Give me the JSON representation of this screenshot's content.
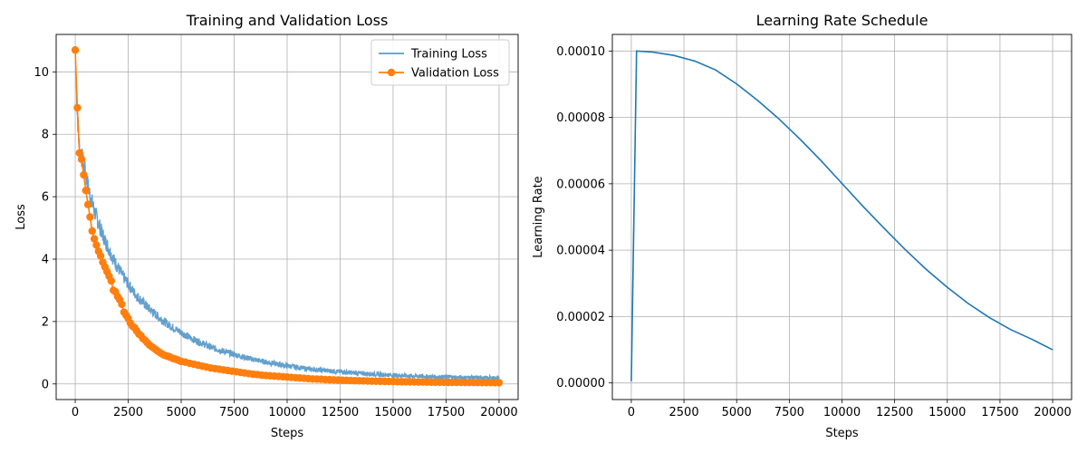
{
  "chart_data": [
    {
      "type": "line",
      "title": "Training and Validation Loss",
      "xlabel": "Steps",
      "ylabel": "Loss",
      "xlim": [
        -900,
        20900
      ],
      "ylim": [
        -0.5,
        11.2
      ],
      "xticks": [
        0,
        2500,
        5000,
        7500,
        10000,
        12500,
        15000,
        17500,
        20000
      ],
      "yticks": [
        0,
        2,
        4,
        6,
        8,
        10
      ],
      "grid": true,
      "legend_position": "top-right",
      "series": [
        {
          "name": "Training Loss",
          "color": "#5b9bcb",
          "style": "line",
          "x": [
            0,
            100,
            200,
            300,
            400,
            500,
            600,
            700,
            800,
            900,
            1000,
            1200,
            1400,
            1600,
            1800,
            2000,
            2250,
            2500,
            2750,
            3000,
            3500,
            4000,
            4500,
            5000,
            5500,
            6000,
            6500,
            7000,
            7500,
            8000,
            9000,
            10000,
            11000,
            12000,
            13000,
            14000,
            15000,
            16000,
            17000,
            18000,
            19000,
            20000
          ],
          "values": [
            10.6,
            8.7,
            7.5,
            7.3,
            7.0,
            6.7,
            6.35,
            6.05,
            5.8,
            5.55,
            5.35,
            4.95,
            4.6,
            4.3,
            4.0,
            3.75,
            3.45,
            3.2,
            2.95,
            2.75,
            2.4,
            2.1,
            1.85,
            1.65,
            1.45,
            1.3,
            1.15,
            1.05,
            0.95,
            0.85,
            0.7,
            0.58,
            0.48,
            0.42,
            0.36,
            0.32,
            0.28,
            0.25,
            0.23,
            0.21,
            0.2,
            0.19
          ]
        },
        {
          "name": "Validation Loss",
          "color": "#ff7f0e",
          "style": "line-marker",
          "x": [
            0,
            100,
            200,
            300,
            400,
            500,
            600,
            700,
            800,
            900,
            1000,
            1100,
            1200,
            1300,
            1400,
            1500,
            1600,
            1700,
            1800,
            1900,
            2000,
            2100,
            2200,
            2300,
            2400,
            2500,
            2600,
            2700,
            2800,
            2900,
            3000,
            3100,
            3200,
            3300,
            3400,
            3500,
            3600,
            3700,
            3800,
            3900,
            4000,
            4100,
            4200,
            4300,
            4400,
            4500,
            4600,
            4700,
            4800,
            4900,
            5000,
            5200,
            5400,
            5600,
            5800,
            6000,
            6200,
            6400,
            6600,
            6800,
            7000,
            7200,
            7400,
            7600,
            7800,
            8000,
            8200,
            8400,
            8600,
            8800,
            9000,
            9200,
            9400,
            9600,
            9800,
            10000,
            10200,
            10400,
            10600,
            10800,
            11000,
            11200,
            11400,
            11600,
            11800,
            12000,
            12200,
            12400,
            12600,
            12800,
            13000,
            13200,
            13400,
            13600,
            13800,
            14000,
            14200,
            14400,
            14600,
            14800,
            15000,
            15200,
            15400,
            15600,
            15800,
            16000,
            16200,
            16400,
            16600,
            16800,
            17000,
            17200,
            17400,
            17600,
            17800,
            18000,
            18200,
            18400,
            18600,
            18800,
            19000,
            19200,
            19400,
            19600,
            19800,
            20000
          ],
          "values": [
            10.7,
            8.85,
            7.4,
            7.2,
            6.7,
            6.2,
            5.75,
            5.35,
            4.9,
            4.65,
            4.45,
            4.25,
            4.1,
            3.9,
            3.75,
            3.6,
            3.45,
            3.3,
            3.0,
            2.95,
            2.8,
            2.7,
            2.55,
            2.3,
            2.2,
            2.1,
            1.95,
            1.85,
            1.8,
            1.7,
            1.6,
            1.55,
            1.45,
            1.4,
            1.32,
            1.25,
            1.2,
            1.15,
            1.1,
            1.05,
            1.0,
            0.96,
            0.92,
            0.9,
            0.88,
            0.85,
            0.82,
            0.8,
            0.78,
            0.75,
            0.72,
            0.7,
            0.66,
            0.63,
            0.6,
            0.57,
            0.54,
            0.51,
            0.49,
            0.47,
            0.45,
            0.43,
            0.41,
            0.39,
            0.37,
            0.35,
            0.33,
            0.31,
            0.3,
            0.28,
            0.27,
            0.26,
            0.25,
            0.24,
            0.23,
            0.22,
            0.21,
            0.2,
            0.19,
            0.18,
            0.17,
            0.16,
            0.155,
            0.15,
            0.14,
            0.135,
            0.13,
            0.125,
            0.12,
            0.115,
            0.11,
            0.105,
            0.1,
            0.097,
            0.094,
            0.09,
            0.087,
            0.084,
            0.081,
            0.078,
            0.075,
            0.072,
            0.07,
            0.068,
            0.066,
            0.064,
            0.062,
            0.06,
            0.058,
            0.056,
            0.055,
            0.054,
            0.053,
            0.052,
            0.051,
            0.05,
            0.049,
            0.048,
            0.047,
            0.046,
            0.045,
            0.044,
            0.043,
            0.042,
            0.041,
            0.04
          ]
        }
      ]
    },
    {
      "type": "line",
      "title": "Learning Rate Schedule",
      "xlabel": "Steps",
      "ylabel": "Learning Rate",
      "xlim": [
        -900,
        20900
      ],
      "ylim": [
        -5e-06,
        0.000105
      ],
      "xticks": [
        0,
        2500,
        5000,
        7500,
        10000,
        12500,
        15000,
        17500,
        20000
      ],
      "yticks": [
        0,
        2e-05,
        4e-05,
        6e-05,
        8e-05,
        0.0001
      ],
      "ytick_labels": [
        "0.00000",
        "0.00002",
        "0.00004",
        "0.00006",
        "0.00008",
        "0.00010"
      ],
      "grid": true,
      "series": [
        {
          "color": "#1f77b4",
          "style": "line",
          "x": [
            0,
            250,
            1000,
            2000,
            3000,
            4000,
            5000,
            6000,
            7000,
            8000,
            9000,
            10000,
            11000,
            12000,
            13000,
            14000,
            15000,
            16000,
            17000,
            18000,
            19000,
            20000
          ],
          "values": [
            5e-07,
            0.0001,
            9.97e-05,
            9.87e-05,
            9.7e-05,
            9.43e-05,
            9.01e-05,
            8.51e-05,
            7.96e-05,
            7.35e-05,
            6.7e-05,
            6.01e-05,
            5.32e-05,
            4.66e-05,
            4.02e-05,
            3.42e-05,
            2.88e-05,
            2.39e-05,
            1.97e-05,
            1.61e-05,
            1.32e-05,
            1e-05
          ]
        }
      ]
    }
  ]
}
